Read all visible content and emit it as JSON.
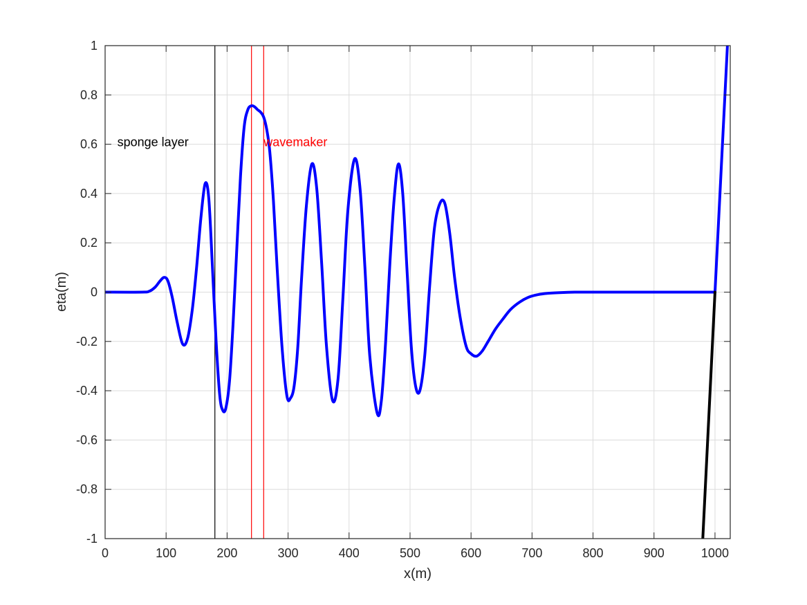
{
  "chart_data": {
    "type": "line",
    "title": "",
    "xlabel": "x(m)",
    "ylabel": "eta(m)",
    "xlim": [
      0,
      1025
    ],
    "ylim": [
      -1,
      1
    ],
    "grid": true,
    "x_ticks": [
      0,
      100,
      200,
      300,
      400,
      500,
      600,
      700,
      800,
      900,
      1000
    ],
    "y_ticks": [
      -1,
      -0.8,
      -0.6,
      -0.4,
      -0.2,
      0,
      0.2,
      0.4,
      0.6,
      0.8,
      1
    ],
    "x_tick_labels": [
      "0",
      "100",
      "200",
      "300",
      "400",
      "500",
      "600",
      "700",
      "800",
      "900",
      "1000"
    ],
    "y_tick_labels": [
      "-1",
      "-0.8",
      "-0.6",
      "-0.4",
      "-0.2",
      "0",
      "0.2",
      "0.4",
      "0.6",
      "0.8",
      "1"
    ],
    "series": [
      {
        "color": "#0000ff",
        "x": [
          0,
          60,
          72,
          82,
          90,
          97,
          103,
          110,
          118,
          127,
          135,
          143,
          150,
          157,
          164,
          170,
          176,
          182,
          188,
          193,
          198,
          204,
          210,
          216,
          222,
          228,
          234,
          240,
          245,
          250,
          255,
          260,
          265,
          270,
          276,
          282,
          290,
          298,
          304,
          310,
          316,
          322,
          330,
          339,
          347,
          355,
          363,
          373,
          382,
          390,
          398,
          409,
          418,
          426,
          434,
          446,
          453,
          460,
          467,
          474,
          481,
          488,
          495,
          502,
          509,
          516,
          524,
          532,
          540,
          549,
          557,
          565,
          573,
          582,
          592,
          600,
          609,
          618,
          628,
          640,
          652,
          665,
          680,
          695,
          710,
          725,
          745,
          770,
          800,
          900,
          1000
        ],
        "y": [
          0,
          0,
          0.003,
          0.02,
          0.045,
          0.06,
          0.045,
          -0.02,
          -0.12,
          -0.21,
          -0.19,
          -0.07,
          0.1,
          0.3,
          0.44,
          0.38,
          0.1,
          -0.2,
          -0.42,
          -0.48,
          -0.47,
          -0.36,
          -0.12,
          0.18,
          0.47,
          0.67,
          0.74,
          0.756,
          0.752,
          0.74,
          0.73,
          0.71,
          0.66,
          0.57,
          0.37,
          0.1,
          -0.22,
          -0.42,
          -0.43,
          -0.38,
          -0.22,
          0.05,
          0.35,
          0.52,
          0.42,
          0.12,
          -0.22,
          -0.44,
          -0.35,
          -0.02,
          0.33,
          0.54,
          0.42,
          0.1,
          -0.26,
          -0.49,
          -0.44,
          -0.2,
          0.12,
          0.38,
          0.52,
          0.4,
          0.09,
          -0.22,
          -0.38,
          -0.4,
          -0.26,
          0.02,
          0.26,
          0.36,
          0.36,
          0.24,
          0.06,
          -0.1,
          -0.22,
          -0.25,
          -0.26,
          -0.24,
          -0.2,
          -0.15,
          -0.11,
          -0.07,
          -0.04,
          -0.02,
          -0.01,
          -0.005,
          -0.002,
          0,
          0,
          0,
          0
        ]
      },
      {
        "color": "#0000ff",
        "x": [
          1000,
          1021
        ],
        "y": [
          0,
          1.03
        ]
      },
      {
        "color": "#000000",
        "x": [
          980,
          1000
        ],
        "y": [
          -1,
          0
        ]
      }
    ],
    "vertical_lines": [
      {
        "x": 180,
        "color": "#000000"
      },
      {
        "x": 240,
        "color": "#ff0000"
      },
      {
        "x": 260,
        "color": "#ff0000"
      }
    ],
    "annotations": [
      {
        "text": "sponge layer",
        "x": 20,
        "y": 0.6,
        "color": "#000000"
      },
      {
        "text": "wavemaker",
        "x": 260,
        "y": 0.6,
        "color": "#ff0000"
      }
    ]
  }
}
